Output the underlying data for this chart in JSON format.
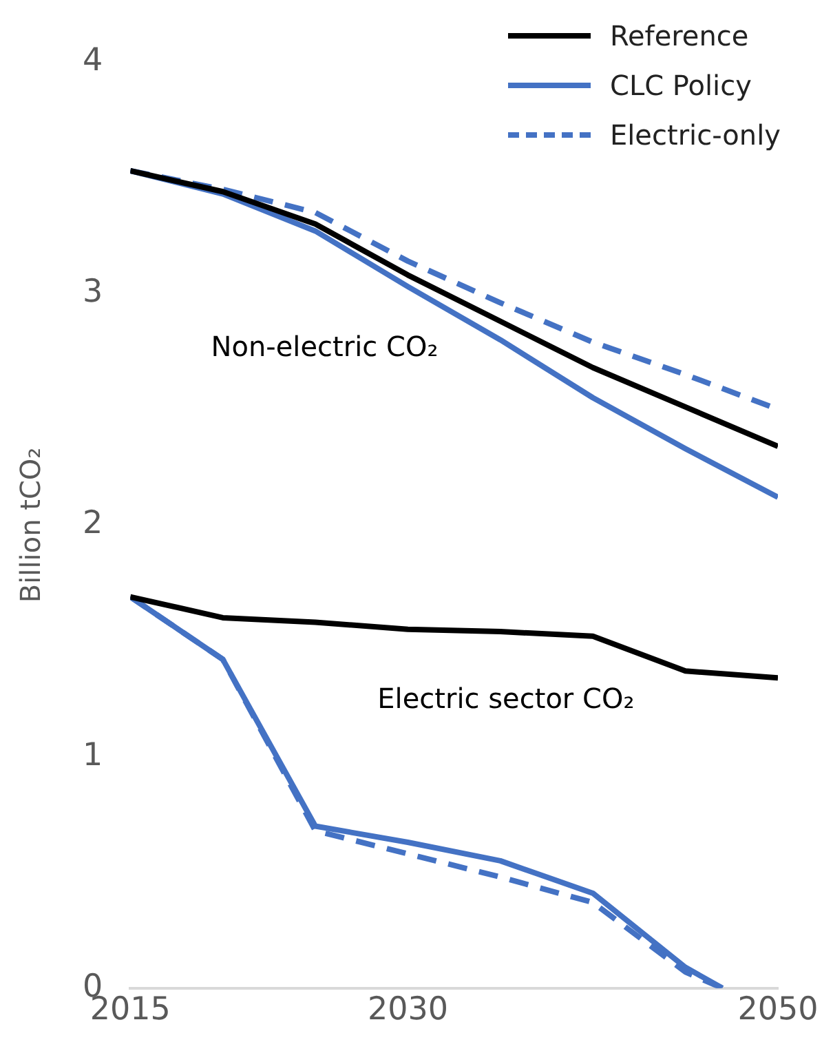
{
  "chart_data": {
    "type": "line",
    "ylabel": "Billion tCO₂",
    "xlim": [
      2015,
      2050
    ],
    "xticks": [
      2015,
      2030,
      2050
    ],
    "ylim": [
      0,
      4
    ],
    "yticks": [
      0,
      1,
      2,
      3,
      4
    ],
    "grid": false,
    "legend": "top right",
    "marker": "none",
    "series": [
      {
        "name": "Reference",
        "color": "#000000",
        "line_style": "solid",
        "x": [
          2015,
          2020,
          2025,
          2030,
          2035,
          2040,
          2045,
          2050
        ],
        "values": [
          3.53,
          3.44,
          3.3,
          3.08,
          2.88,
          2.68,
          2.51,
          2.34
        ]
      },
      {
        "name": "CLC Policy",
        "color": "#4472c4",
        "line_style": "solid",
        "x": [
          2015,
          2020,
          2025,
          2030,
          2035,
          2040,
          2045,
          2050
        ],
        "values": [
          3.53,
          3.43,
          3.27,
          3.03,
          2.8,
          2.55,
          2.33,
          2.12
        ]
      },
      {
        "name": "Electric-only",
        "color": "#4472c4",
        "line_style": "dashed",
        "x": [
          2015,
          2020,
          2025,
          2030,
          2035,
          2040,
          2045,
          2050
        ],
        "values": [
          3.53,
          3.45,
          3.35,
          3.14,
          2.96,
          2.79,
          2.65,
          2.5
        ]
      },
      {
        "color": "#000000",
        "line_style": "solid",
        "x": [
          2015,
          2020,
          2025,
          2030,
          2035,
          2040,
          2045,
          2050
        ],
        "values": [
          1.69,
          1.6,
          1.58,
          1.55,
          1.54,
          1.52,
          1.37,
          1.34
        ]
      },
      {
        "color": "#4472c4",
        "line_style": "solid",
        "x": [
          2015,
          2020,
          2025,
          2030,
          2035,
          2040,
          2045,
          2047
        ],
        "values": [
          1.69,
          1.42,
          0.7,
          0.63,
          0.55,
          0.41,
          0.09,
          0
        ]
      },
      {
        "color": "#4472c4",
        "line_style": "dashed",
        "x": [
          2015,
          2020,
          2025,
          2030,
          2035,
          2040,
          2045,
          2047
        ],
        "values": [
          1.69,
          1.42,
          0.68,
          0.58,
          0.48,
          0.37,
          0.07,
          0
        ]
      }
    ],
    "annotations": [
      "Non-electric CO₂",
      "Electric sector CO₂"
    ]
  }
}
